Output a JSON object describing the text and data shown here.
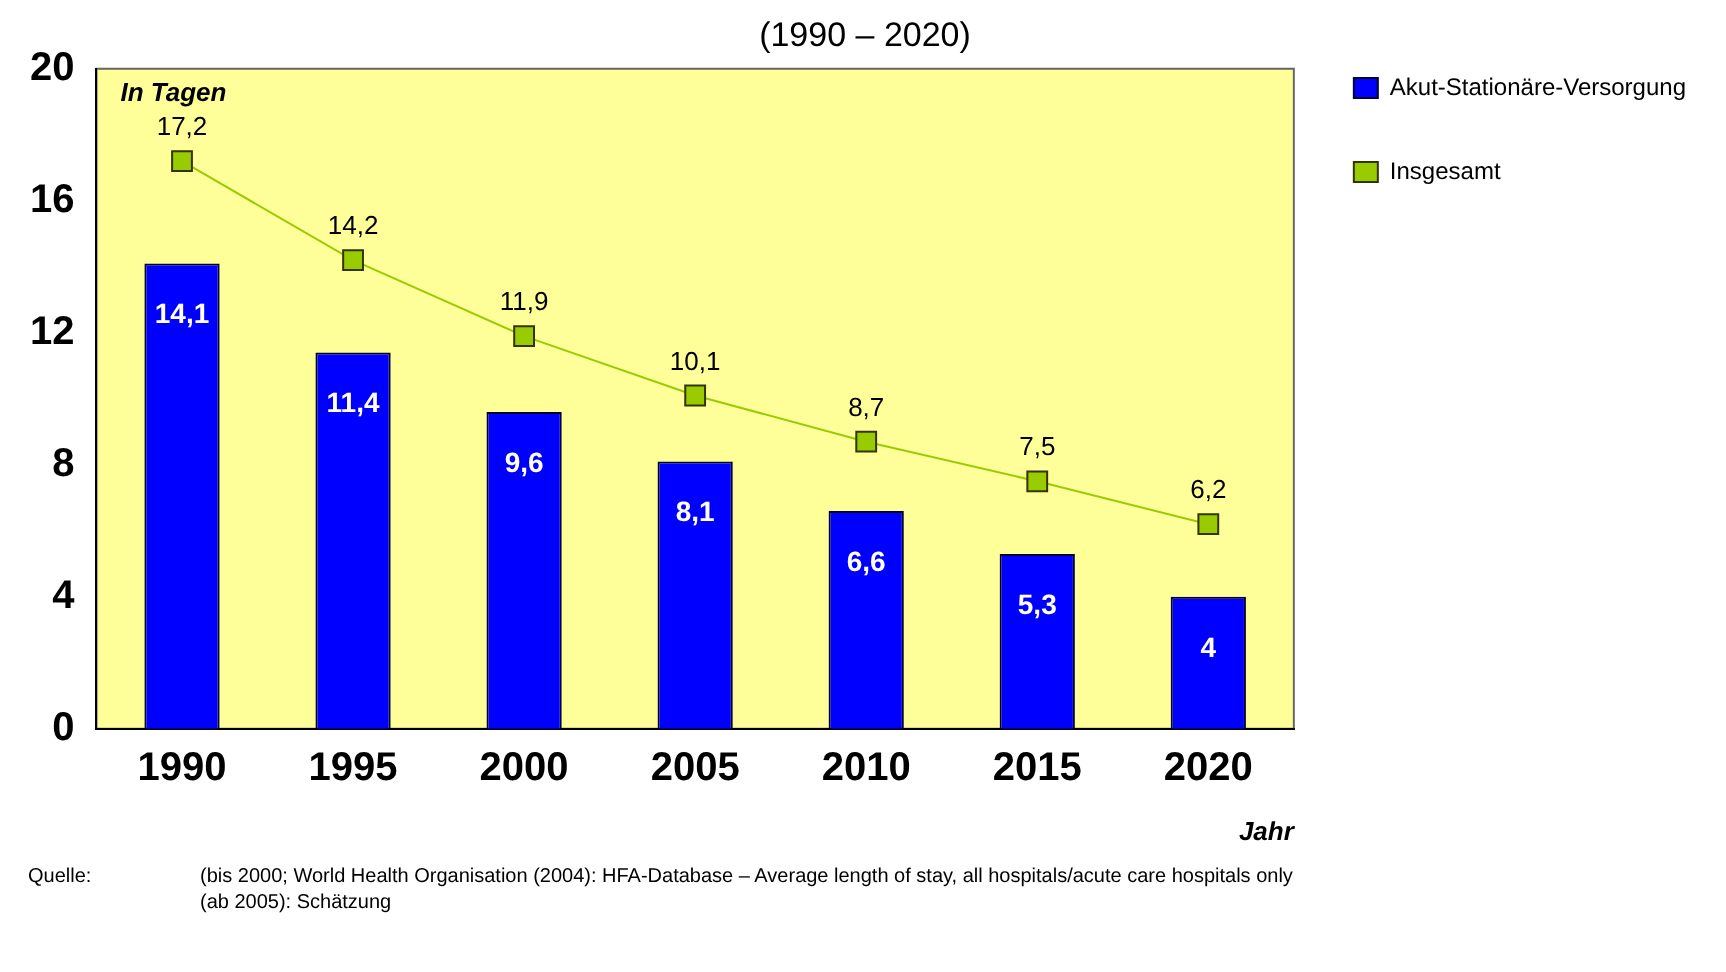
{
  "chart_data": {
    "type": "bar",
    "title": "(1990 – 2020)",
    "ylabel": "In Tagen",
    "xlabel": "Jahr",
    "categories": [
      "1990",
      "1995",
      "2000",
      "2005",
      "2010",
      "2015",
      "2020"
    ],
    "series": [
      {
        "name": "Akut-Stationäre-Versorgung",
        "color": "#0000ff",
        "values": [
          14.1,
          11.4,
          9.6,
          8.1,
          6.6,
          5.3,
          4
        ],
        "value_labels": [
          "14,1",
          "11,4",
          "9,6",
          "8,1",
          "6,6",
          "5,3",
          "4"
        ]
      },
      {
        "name": "Insgesamt",
        "type": "line",
        "color": "#99cc00",
        "values": [
          17.2,
          14.2,
          11.9,
          10.1,
          8.7,
          7.5,
          6.2
        ],
        "value_labels": [
          "17,2",
          "14,2",
          "11,9",
          "10,1",
          "8,7",
          "7,5",
          "6,2"
        ]
      }
    ],
    "ylim": [
      0,
      20
    ],
    "yticks": [
      0,
      4,
      8,
      12,
      16,
      20
    ],
    "grid": false,
    "legend": "top right",
    "marker": "square",
    "line_style": "solid",
    "annotations": [
      "Quelle:",
      "(bis 2000; World Health Organisation (2004): HFA-Database – Average length of stay, all hospitals/acute care hospitals only",
      "(ab 2005): Schätzung"
    ]
  }
}
